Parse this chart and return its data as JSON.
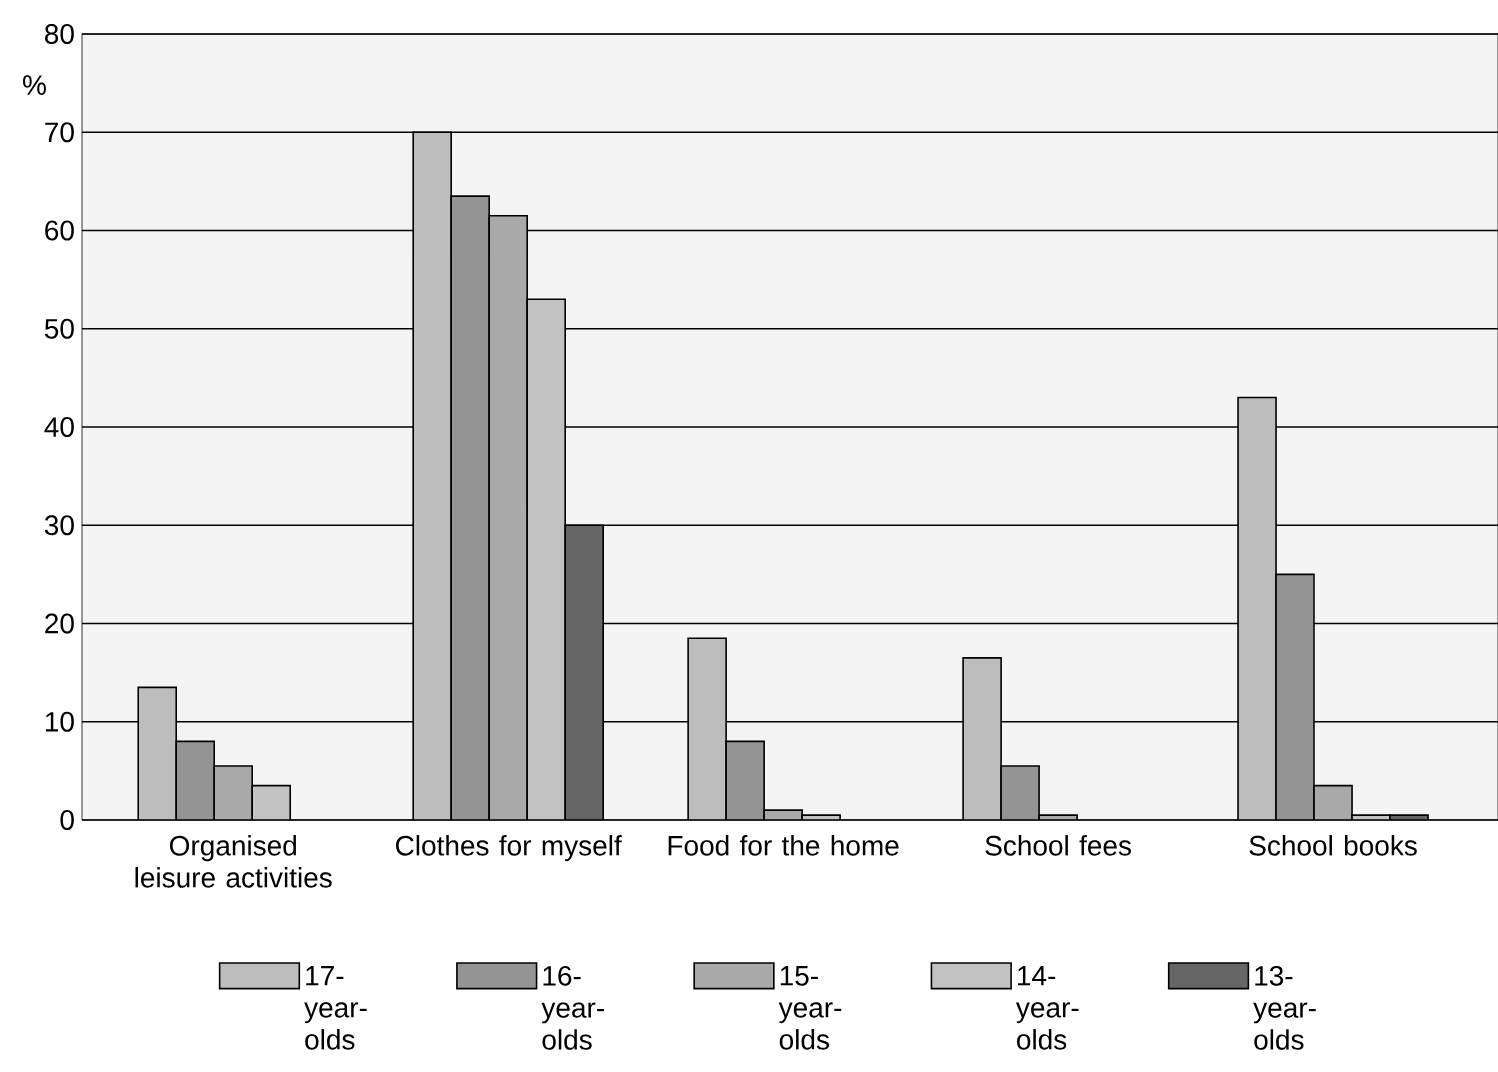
{
  "chart_data": {
    "type": "bar",
    "ylabel": "%",
    "categories": [
      "Organised leisure activities",
      "Clothes for myself",
      "Food for the home",
      "School fees",
      "School books"
    ],
    "series": [
      {
        "name": "17-year-olds",
        "color": "#bdbdbd",
        "values": [
          13.5,
          70,
          18.5,
          16.5,
          43
        ]
      },
      {
        "name": "16-year-olds",
        "color": "#949494",
        "values": [
          8,
          63.5,
          8,
          5.5,
          25
        ]
      },
      {
        "name": "15-year-olds",
        "color": "#a9a9a9",
        "values": [
          5.5,
          61.5,
          1,
          0.5,
          3.5
        ]
      },
      {
        "name": "14-year-olds",
        "color": "#c2c2c2",
        "values": [
          3.5,
          53,
          0.5,
          null,
          0.5
        ]
      },
      {
        "name": "13-year-olds",
        "color": "#666666",
        "values": [
          null,
          30,
          null,
          null,
          0.5
        ]
      }
    ],
    "ylim": [
      0,
      80
    ],
    "yticks": [
      0,
      10,
      20,
      30,
      40,
      50,
      60,
      70,
      80
    ],
    "grid": "y",
    "legend": "bottom"
  }
}
